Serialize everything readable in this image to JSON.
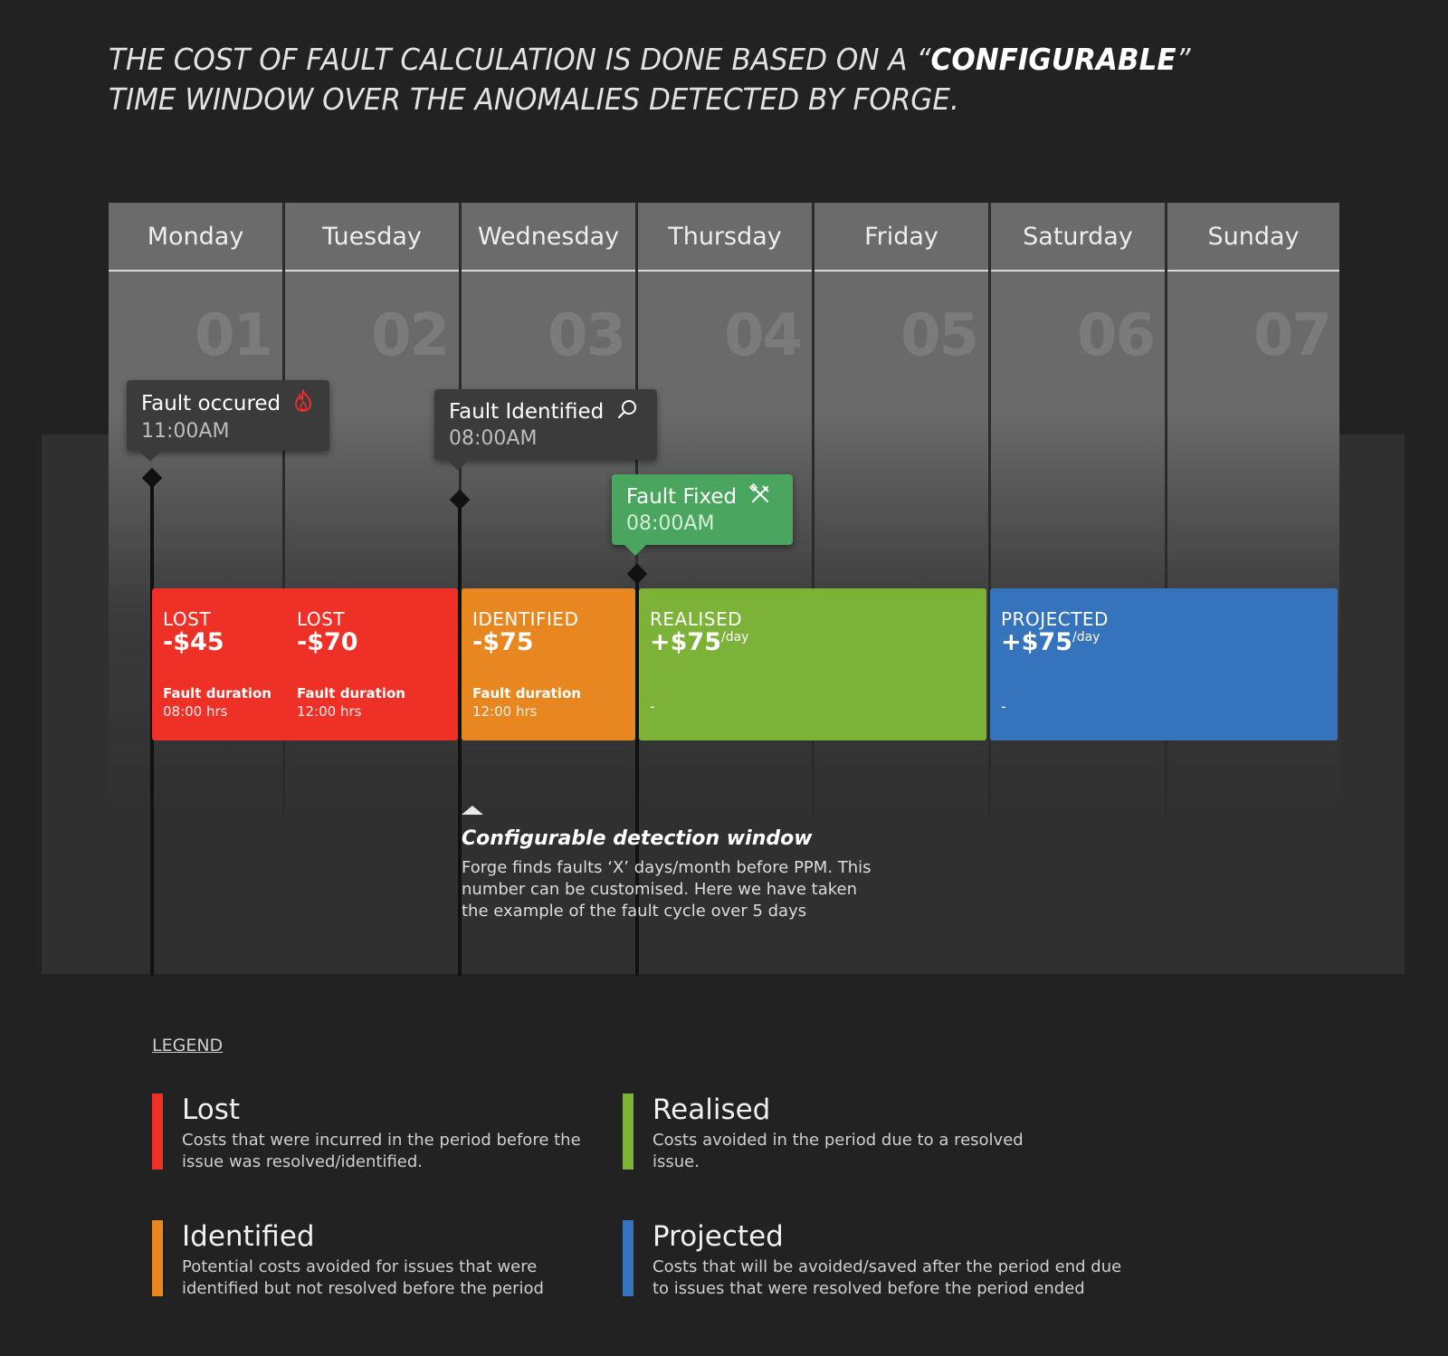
{
  "headline": {
    "part1": "THE COST OF FAULT CALCULATION IS DONE BASED ON A “",
    "emphasis": "CONFIGURABLE",
    "part2": "” TIME WINDOW OVER THE ANOMALIES DETECTED BY FORGE."
  },
  "days": [
    {
      "name": "Monday",
      "num": "01"
    },
    {
      "name": "Tuesday",
      "num": "02"
    },
    {
      "name": "Wednesday",
      "num": "03"
    },
    {
      "name": "Thursday",
      "num": "04"
    },
    {
      "name": "Friday",
      "num": "05"
    },
    {
      "name": "Saturday",
      "num": "06"
    },
    {
      "name": "Sunday",
      "num": "07"
    }
  ],
  "events": [
    {
      "title": "Fault occured",
      "time": "11:00AM",
      "icon": "flame-icon",
      "icon_color": "#e8302a"
    },
    {
      "title": "Fault Identified",
      "time": "08:00AM",
      "icon": "search-icon"
    },
    {
      "title": "Fault Fixed",
      "time": "08:00AM",
      "icon": "tools-icon"
    }
  ],
  "blocks": {
    "lost": {
      "color": "#ef3027",
      "cells": [
        {
          "label": "LOST",
          "amount": "-$45",
          "duration_label": "Fault duration",
          "duration": "08:00 hrs"
        },
        {
          "label": "LOST",
          "amount": "-$70",
          "duration_label": "Fault duration",
          "duration": "12:00 hrs"
        }
      ]
    },
    "identified": {
      "color": "#e8861f",
      "label": "IDENTIFIED",
      "amount": "-$75",
      "duration_label": "Fault duration",
      "duration": "12:00 hrs"
    },
    "realised": {
      "color": "#7db238",
      "label": "REALISED",
      "amount": "+$75",
      "unit": "/day",
      "note": "-"
    },
    "projected": {
      "color": "#3574bd",
      "label": "PROJECTED",
      "amount": "+$75",
      "unit": "/day",
      "note": "-"
    }
  },
  "window_note": {
    "title": "Configurable detection window",
    "description": "Forge finds faults ‘X’ days/month before PPM. This number can be customised. Here we have taken the example of the fault cycle over 5 days"
  },
  "legend": {
    "title": "LEGEND",
    "items": [
      {
        "name": "Lost",
        "color": "#ef3027",
        "description": "Costs that were incurred in the period before the issue was resolved/identified."
      },
      {
        "name": "Realised",
        "color": "#7db238",
        "description": "Costs avoided in the period due to a resolved issue."
      },
      {
        "name": "Identified",
        "color": "#e8861f",
        "description": "Potential costs avoided for issues that were identified but not resolved before the period"
      },
      {
        "name": "Projected",
        "color": "#3574bd",
        "description": "Costs that will be avoided/saved after the period end due to issues that were resolved before the period ended"
      }
    ]
  }
}
